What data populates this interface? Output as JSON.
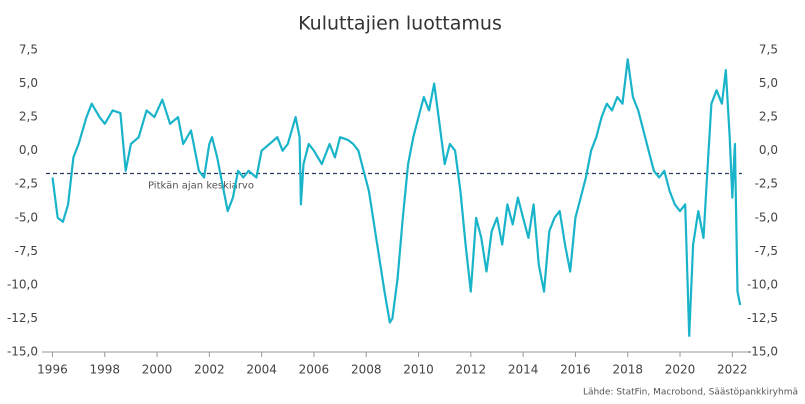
{
  "chart_data": {
    "type": "line",
    "title": "Kuluttajien luottamus",
    "source": "Lähde: StatFin, Macrobond, Säästöpankkiryhmä",
    "x": [
      1996.0,
      1996.2,
      1996.4,
      1996.6,
      1996.8,
      1997.0,
      1997.3,
      1997.5,
      1997.8,
      1998.0,
      1998.3,
      1998.6,
      1998.8,
      1999.0,
      1999.3,
      1999.6,
      1999.9,
      2000.2,
      2000.5,
      2000.8,
      2001.0,
      2001.3,
      2001.6,
      2001.8,
      2002.0,
      2002.1,
      2002.3,
      2002.5,
      2002.7,
      2002.9,
      2003.1,
      2003.3,
      2003.5,
      2003.8,
      2004.0,
      2004.3,
      2004.6,
      2004.8,
      2005.0,
      2005.3,
      2005.45,
      2005.5,
      2005.6,
      2005.8,
      2006.0,
      2006.3,
      2006.6,
      2006.8,
      2007.0,
      2007.3,
      2007.5,
      2007.7,
      2007.9,
      2008.1,
      2008.3,
      2008.5,
      2008.7,
      2008.9,
      2009.0,
      2009.2,
      2009.4,
      2009.6,
      2009.8,
      2010.0,
      2010.2,
      2010.4,
      2010.6,
      2010.8,
      2011.0,
      2011.2,
      2011.4,
      2011.6,
      2011.8,
      2012.0,
      2012.2,
      2012.4,
      2012.6,
      2012.8,
      2013.0,
      2013.2,
      2013.4,
      2013.6,
      2013.8,
      2014.0,
      2014.2,
      2014.4,
      2014.6,
      2014.8,
      2015.0,
      2015.2,
      2015.4,
      2015.6,
      2015.8,
      2016.0,
      2016.2,
      2016.4,
      2016.6,
      2016.8,
      2017.0,
      2017.2,
      2017.4,
      2017.6,
      2017.8,
      2018.0,
      2018.2,
      2018.4,
      2018.6,
      2018.8,
      2019.0,
      2019.2,
      2019.4,
      2019.6,
      2019.8,
      2020.0,
      2020.2,
      2020.35,
      2020.5,
      2020.7,
      2020.9,
      2021.0,
      2021.2,
      2021.4,
      2021.6,
      2021.75,
      2021.9,
      2022.0,
      2022.1,
      2022.2,
      2022.3
    ],
    "series": [
      {
        "color": "#1ab4ca",
        "values": [
          -2.0,
          -5.0,
          -5.3,
          -4.0,
          -0.5,
          0.5,
          2.5,
          3.5,
          2.5,
          2.0,
          3.0,
          2.8,
          -1.5,
          0.5,
          1.0,
          3.0,
          2.5,
          3.8,
          2.0,
          2.5,
          0.5,
          1.5,
          -1.5,
          -2.0,
          0.5,
          1.0,
          -0.5,
          -2.5,
          -4.5,
          -3.5,
          -1.5,
          -2.0,
          -1.5,
          -2.0,
          0.0,
          0.5,
          1.0,
          0.0,
          0.5,
          2.5,
          1.0,
          -4.0,
          -1.0,
          0.5,
          0.0,
          -1.0,
          0.5,
          -0.5,
          1.0,
          0.8,
          0.5,
          0.0,
          -1.5,
          -3.0,
          -5.5,
          -8.0,
          -10.5,
          -12.8,
          -12.5,
          -9.5,
          -5.0,
          -1.0,
          1.0,
          2.5,
          4.0,
          3.0,
          5.0,
          2.0,
          -1.0,
          0.5,
          0.0,
          -3.0,
          -7.0,
          -10.5,
          -5.0,
          -6.5,
          -9.0,
          -6.0,
          -5.0,
          -7.0,
          -4.0,
          -5.5,
          -3.5,
          -5.0,
          -6.5,
          -4.0,
          -8.5,
          -10.5,
          -6.0,
          -5.0,
          -4.5,
          -7.0,
          -9.0,
          -5.0,
          -3.5,
          -2.0,
          0.0,
          1.0,
          2.5,
          3.5,
          3.0,
          4.0,
          3.5,
          6.8,
          4.0,
          3.0,
          1.5,
          0.0,
          -1.5,
          -2.0,
          -1.5,
          -3.0,
          -4.0,
          -4.5,
          -4.0,
          -13.8,
          -7.0,
          -4.5,
          -6.5,
          -3.0,
          3.5,
          4.5,
          3.5,
          6.0,
          1.0,
          -3.5,
          0.5,
          -10.5,
          -11.5
        ]
      }
    ],
    "average": {
      "value": -1.7,
      "label": "Pitkän ajan keskiarvo"
    },
    "xlim": [
      1995.6,
      2022.6
    ],
    "xticks": [
      1996,
      1998,
      2000,
      2002,
      2004,
      2006,
      2008,
      2010,
      2012,
      2014,
      2016,
      2018,
      2020,
      2022
    ],
    "ylim": [
      -15,
      7.5
    ],
    "yticks": [
      {
        "value": 7.5,
        "label": "7,5"
      },
      {
        "value": 5,
        "label": "5,0"
      },
      {
        "value": 2.5,
        "label": "2,5"
      },
      {
        "value": 0,
        "label": "0,0"
      },
      {
        "value": -2.5,
        "label": "-2,5"
      },
      {
        "value": -5,
        "label": "-5,0"
      },
      {
        "value": -7.5,
        "label": "-7,5"
      },
      {
        "value": -10,
        "label": "-10,0"
      },
      {
        "value": -12.5,
        "label": "-12,5"
      },
      {
        "value": -15,
        "label": "-15,0"
      }
    ],
    "y2lim": [
      -15,
      7.5
    ],
    "y2ticks": [
      {
        "value": 7.5,
        "label": "7,5"
      },
      {
        "value": 5,
        "label": "5,0"
      },
      {
        "value": 2.5,
        "label": "2,5"
      },
      {
        "value": 0,
        "label": "0,0"
      },
      {
        "value": -2.5,
        "label": "-2,5"
      },
      {
        "value": -5,
        "label": "-5,0"
      },
      {
        "value": -7.5,
        "label": "-7,5"
      },
      {
        "value": -10,
        "label": "-10,0"
      },
      {
        "value": -12.5,
        "label": "-12,5"
      },
      {
        "value": -15,
        "label": "-15,0"
      }
    ],
    "grid": false
  }
}
